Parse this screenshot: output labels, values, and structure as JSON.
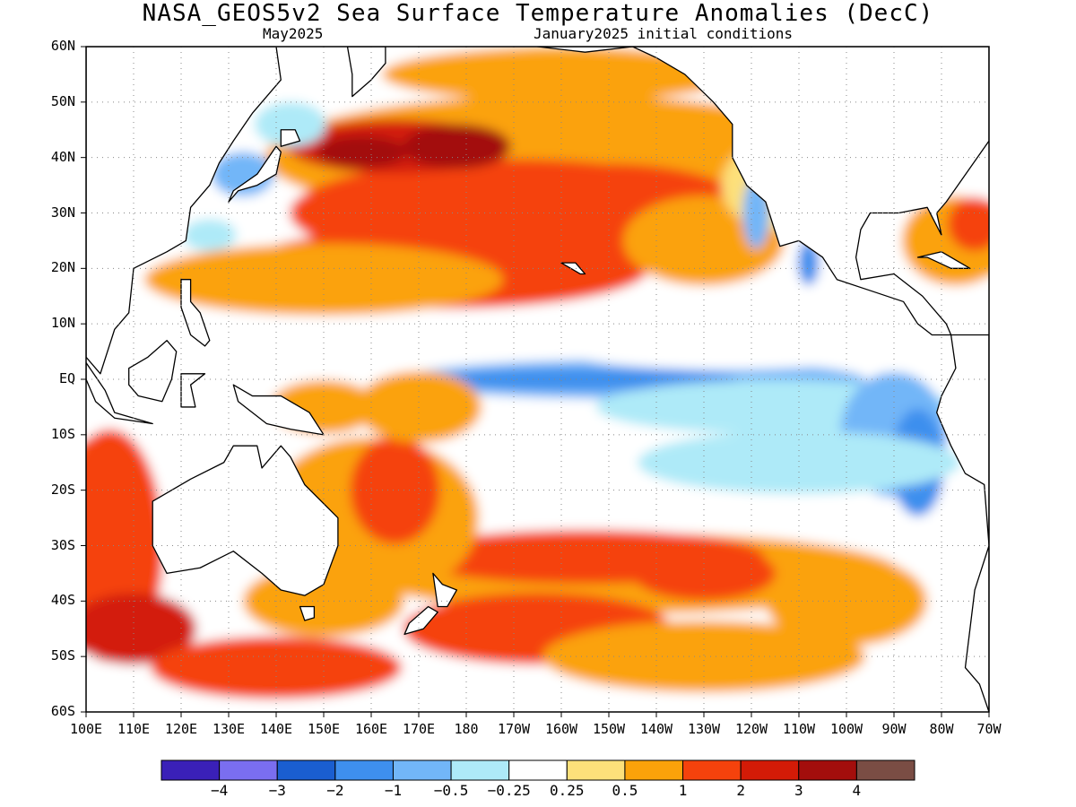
{
  "title": "NASA_GEOS5v2 Sea Surface Temperature Anomalies (DecC)",
  "subtitle_left": "May2025",
  "subtitle_right": "January2025 initial conditions",
  "lat_labels": [
    "60N",
    "50N",
    "40N",
    "30N",
    "20N",
    "10N",
    "EQ",
    "10S",
    "20S",
    "30S",
    "40S",
    "50S",
    "60S"
  ],
  "lon_labels": [
    "100E",
    "110E",
    "120E",
    "130E",
    "140E",
    "150E",
    "160E",
    "170E",
    "180",
    "170W",
    "160W",
    "150W",
    "140W",
    "130W",
    "120W",
    "110W",
    "100W",
    "90W",
    "80W",
    "70W"
  ],
  "colorbar": {
    "colors": [
      "#3a20b8",
      "#7a6ef0",
      "#1a5ed0",
      "#3e8fee",
      "#72b6f8",
      "#aeeaf8",
      "#ffffff",
      "#fde07a",
      "#fba20a",
      "#f5420c",
      "#d31b07",
      "#a30e0c",
      "#7a4d44"
    ],
    "labels": [
      "-4",
      "-3",
      "-2",
      "-1",
      "-0.5",
      "-0.25",
      "0.25",
      "0.5",
      "1",
      "2",
      "3",
      "4"
    ]
  },
  "map_features": {
    "land_color": "#ffffff",
    "coastline_color": "#000000",
    "grid": true
  }
}
